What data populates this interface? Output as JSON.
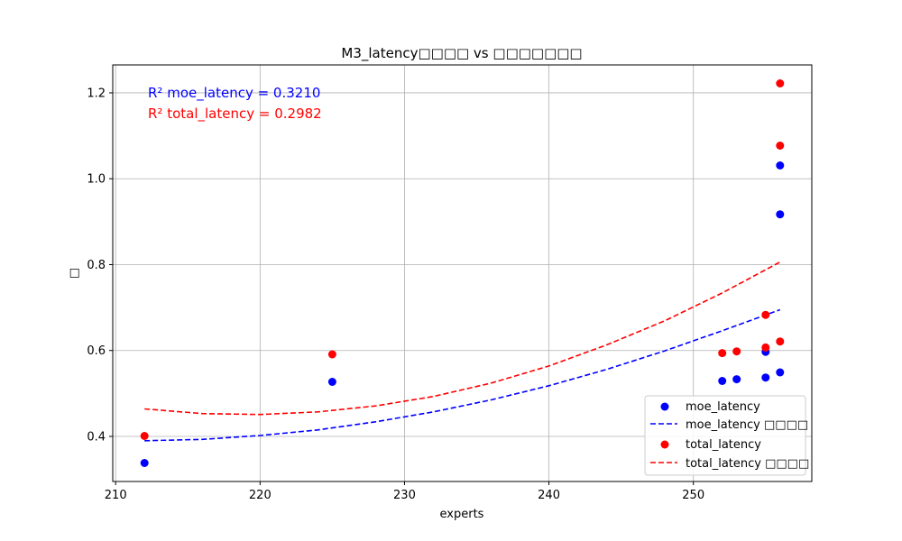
{
  "chart_data": {
    "type": "scatter",
    "title": "M3_latency□□□□ vs □□□□□□□",
    "xlabel": "experts",
    "ylabel": "□",
    "xlim": [
      209.8,
      258.2
    ],
    "ylim": [
      0.295,
      1.265
    ],
    "xticks": [
      210,
      220,
      230,
      240,
      250
    ],
    "yticks": [
      0.4,
      0.6,
      0.8,
      1.0,
      1.2
    ],
    "xtick_labels": [
      "210",
      "220",
      "230",
      "240",
      "250"
    ],
    "ytick_labels": [
      "0.4",
      "0.6",
      "0.8",
      "1.0",
      "1.2"
    ],
    "grid": true,
    "legend_position": "lower-right",
    "series": [
      {
        "name": "moe_latency",
        "kind": "scatter",
        "color": "#0000ff",
        "x": [
          212,
          225,
          252,
          253,
          255,
          255,
          256,
          256,
          256
        ],
        "y": [
          0.338,
          0.527,
          0.529,
          0.533,
          0.537,
          0.597,
          0.549,
          0.917,
          1.031
        ]
      },
      {
        "name": "moe_latency □□□□",
        "kind": "fit",
        "color": "#0000ff",
        "x": [
          212,
          216,
          220,
          224,
          228,
          232,
          236,
          240,
          244,
          248,
          252,
          256
        ],
        "y": [
          0.39,
          0.393,
          0.402,
          0.415,
          0.434,
          0.457,
          0.485,
          0.518,
          0.556,
          0.599,
          0.646,
          0.695
        ]
      },
      {
        "name": "total_latency",
        "kind": "scatter",
        "color": "#ff0000",
        "x": [
          212,
          225,
          252,
          253,
          255,
          255,
          256,
          256,
          256
        ],
        "y": [
          0.401,
          0.591,
          0.594,
          0.598,
          0.607,
          0.683,
          0.621,
          1.077,
          1.222
        ]
      },
      {
        "name": "total_latency □□□□",
        "kind": "fit",
        "color": "#ff0000",
        "x": [
          212,
          216,
          220,
          224,
          228,
          232,
          236,
          240,
          244,
          248,
          252,
          256
        ],
        "y": [
          0.464,
          0.453,
          0.451,
          0.457,
          0.471,
          0.493,
          0.524,
          0.564,
          0.613,
          0.669,
          0.734,
          0.806
        ]
      }
    ],
    "annotations": [
      {
        "text": "R² moe_latency = 0.3210",
        "color": "#0000ff"
      },
      {
        "text": "R² total_latency = 0.2982",
        "color": "#ff0000"
      }
    ]
  }
}
